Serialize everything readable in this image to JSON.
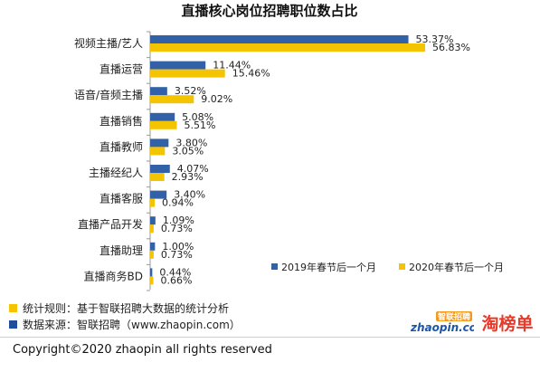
{
  "chart_data": {
    "type": "bar",
    "orientation": "horizontal",
    "title": "直播核心岗位招聘职位数占比",
    "categories": [
      "视频主播/艺人",
      "直播运营",
      "语音/音频主播",
      "直播销售",
      "直播教师",
      "主播经纪人",
      "直播客服",
      "直播产品开发",
      "直播助理",
      "直播商务BD"
    ],
    "series": [
      {
        "name": "2019年春节后一个月",
        "color": "#3361a8",
        "values": [
          53.37,
          11.44,
          3.52,
          5.08,
          3.8,
          4.07,
          3.4,
          1.09,
          1.0,
          0.44
        ],
        "labels": [
          "53.37%",
          "11.44%",
          "3.52%",
          "5.08%",
          "3.80%",
          "4.07%",
          "3.40%",
          "1.09%",
          "1.00%",
          "0.44%"
        ]
      },
      {
        "name": "2020年春节后一个月",
        "color": "#f5c400",
        "values": [
          56.83,
          15.46,
          9.02,
          5.51,
          3.05,
          2.93,
          0.94,
          0.73,
          0.73,
          0.66
        ],
        "labels": [
          "56.83%",
          "15.46%",
          "9.02%",
          "5.51%",
          "3.05%",
          "2.93%",
          "0.94%",
          "0.73%",
          "0.73%",
          "0.66%"
        ]
      }
    ],
    "xlim": [
      0,
      60
    ],
    "legend_position": "bottom-right",
    "grid": false
  },
  "notes": {
    "rule": "统计规则：基于智联招聘大数据的统计分析",
    "rule_color": "#f5c400",
    "source": "数据来源：智联招聘（www.zhaopin.com）",
    "source_color": "#1f4e9b"
  },
  "copyright": "Copyright©2020 zhaopin all rights reserved",
  "logos": {
    "zhaopin_cn": "智联招聘",
    "zhaopin_url": "zhaopin.com",
    "taobang": "淘榜单"
  }
}
